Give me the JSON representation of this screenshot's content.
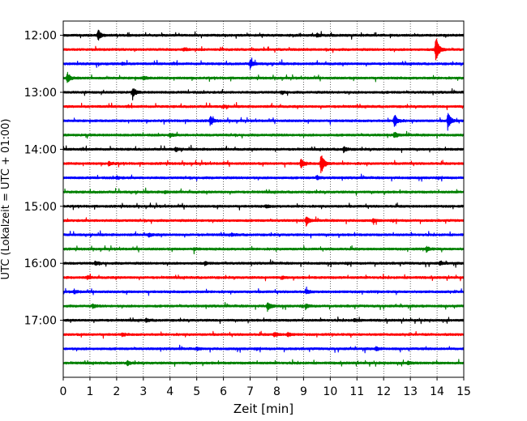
{
  "chart_data": {
    "type": "line",
    "title": "",
    "xlabel": "Zeit  [min]",
    "ylabel": "UTC (Lokalzeit = UTC + 01:00)",
    "xlim": [
      0,
      15
    ],
    "x_ticks": [
      0,
      1,
      2,
      3,
      4,
      5,
      6,
      7,
      8,
      9,
      10,
      11,
      12,
      13,
      14,
      15
    ],
    "x_tick_labels": [
      "0",
      "1",
      "2",
      "3",
      "4",
      "5",
      "6",
      "7",
      "8",
      "9",
      "10",
      "11",
      "12",
      "13",
      "14",
      "15"
    ],
    "ylim": [
      "11:45",
      "18:00"
    ],
    "y_ticks": [
      "12:00",
      "13:00",
      "14:00",
      "15:00",
      "16:00",
      "17:00"
    ],
    "grid_x": true,
    "grid_style": "dotted",
    "trace_interval_min": 15,
    "trace_colors": [
      "#000000",
      "#ff0000",
      "#0000ff",
      "#008000"
    ],
    "traces": [
      {
        "start": "12:00",
        "color": "#000000",
        "events": [
          {
            "t": 1.3,
            "amp": 1.0
          },
          {
            "t": 9.5,
            "amp": 0.25
          }
        ]
      },
      {
        "start": "12:15",
        "color": "#ff0000",
        "events": [
          {
            "t": 13.95,
            "amp": 2.6
          },
          {
            "t": 4.5,
            "amp": 0.2
          }
        ]
      },
      {
        "start": "12:30",
        "color": "#0000ff",
        "events": [
          {
            "t": 7.0,
            "amp": 0.8
          },
          {
            "t": 2.2,
            "amp": 0.2
          }
        ]
      },
      {
        "start": "12:45",
        "color": "#008000",
        "events": [
          {
            "t": 0.15,
            "amp": 1.0
          },
          {
            "t": 3.0,
            "amp": 0.3
          }
        ]
      },
      {
        "start": "13:00",
        "color": "#000000",
        "events": [
          {
            "t": 2.6,
            "amp": 0.9
          },
          {
            "t": 8.2,
            "amp": 0.2
          }
        ]
      },
      {
        "start": "13:15",
        "color": "#ff0000",
        "events": [
          {
            "t": 6.0,
            "amp": 0.2
          }
        ]
      },
      {
        "start": "13:30",
        "color": "#0000ff",
        "events": [
          {
            "t": 5.5,
            "amp": 0.8
          },
          {
            "t": 12.4,
            "amp": 1.3
          },
          {
            "t": 14.4,
            "amp": 1.6
          }
        ]
      },
      {
        "start": "13:45",
        "color": "#008000",
        "events": [
          {
            "t": 4.0,
            "amp": 0.35
          },
          {
            "t": 12.4,
            "amp": 0.5
          }
        ]
      },
      {
        "start": "14:00",
        "color": "#000000",
        "events": [
          {
            "t": 4.2,
            "amp": 0.3
          },
          {
            "t": 10.5,
            "amp": 0.5
          }
        ]
      },
      {
        "start": "14:15",
        "color": "#ff0000",
        "events": [
          {
            "t": 1.7,
            "amp": 0.35
          },
          {
            "t": 8.9,
            "amp": 0.9
          },
          {
            "t": 9.65,
            "amp": 2.1
          }
        ]
      },
      {
        "start": "14:30",
        "color": "#0000ff",
        "events": [
          {
            "t": 2.0,
            "amp": 0.25
          },
          {
            "t": 9.5,
            "amp": 0.3
          }
        ]
      },
      {
        "start": "14:45",
        "color": "#008000",
        "events": [
          {
            "t": 3.8,
            "amp": 0.2
          }
        ]
      },
      {
        "start": "15:00",
        "color": "#000000",
        "events": [
          {
            "t": 7.6,
            "amp": 0.25
          }
        ]
      },
      {
        "start": "15:15",
        "color": "#ff0000",
        "events": [
          {
            "t": 9.1,
            "amp": 0.8
          },
          {
            "t": 11.6,
            "amp": 0.3
          }
        ]
      },
      {
        "start": "15:30",
        "color": "#0000ff",
        "events": [
          {
            "t": 3.2,
            "amp": 0.3
          },
          {
            "t": 6.3,
            "amp": 0.2
          }
        ]
      },
      {
        "start": "15:45",
        "color": "#008000",
        "events": [
          {
            "t": 13.6,
            "amp": 0.5
          },
          {
            "t": 4.9,
            "amp": 0.2
          }
        ]
      },
      {
        "start": "16:00",
        "color": "#000000",
        "events": [
          {
            "t": 1.2,
            "amp": 0.3
          },
          {
            "t": 5.3,
            "amp": 0.25
          },
          {
            "t": 14.1,
            "amp": 0.3
          }
        ]
      },
      {
        "start": "16:15",
        "color": "#ff0000",
        "events": [
          {
            "t": 0.9,
            "amp": 0.25
          },
          {
            "t": 8.2,
            "amp": 0.2
          }
        ]
      },
      {
        "start": "16:30",
        "color": "#0000ff",
        "events": [
          {
            "t": 0.4,
            "amp": 0.3
          },
          {
            "t": 9.1,
            "amp": 0.35
          }
        ]
      },
      {
        "start": "16:45",
        "color": "#008000",
        "events": [
          {
            "t": 7.65,
            "amp": 0.9
          },
          {
            "t": 1.1,
            "amp": 0.3
          },
          {
            "t": 9.1,
            "amp": 0.35
          }
        ]
      },
      {
        "start": "17:00",
        "color": "#000000",
        "events": [
          {
            "t": 3.1,
            "amp": 0.25
          },
          {
            "t": 10.9,
            "amp": 0.25
          }
        ]
      },
      {
        "start": "17:15",
        "color": "#ff0000",
        "events": [
          {
            "t": 7.9,
            "amp": 0.4
          },
          {
            "t": 8.4,
            "amp": 0.35
          },
          {
            "t": 2.2,
            "amp": 0.25
          }
        ]
      },
      {
        "start": "17:30",
        "color": "#0000ff",
        "events": [
          {
            "t": 11.7,
            "amp": 0.3
          },
          {
            "t": 5.0,
            "amp": 0.2
          }
        ]
      },
      {
        "start": "17:45",
        "color": "#008000",
        "events": [
          {
            "t": 2.4,
            "amp": 0.35
          },
          {
            "t": 12.9,
            "amp": 0.3
          }
        ]
      }
    ]
  }
}
